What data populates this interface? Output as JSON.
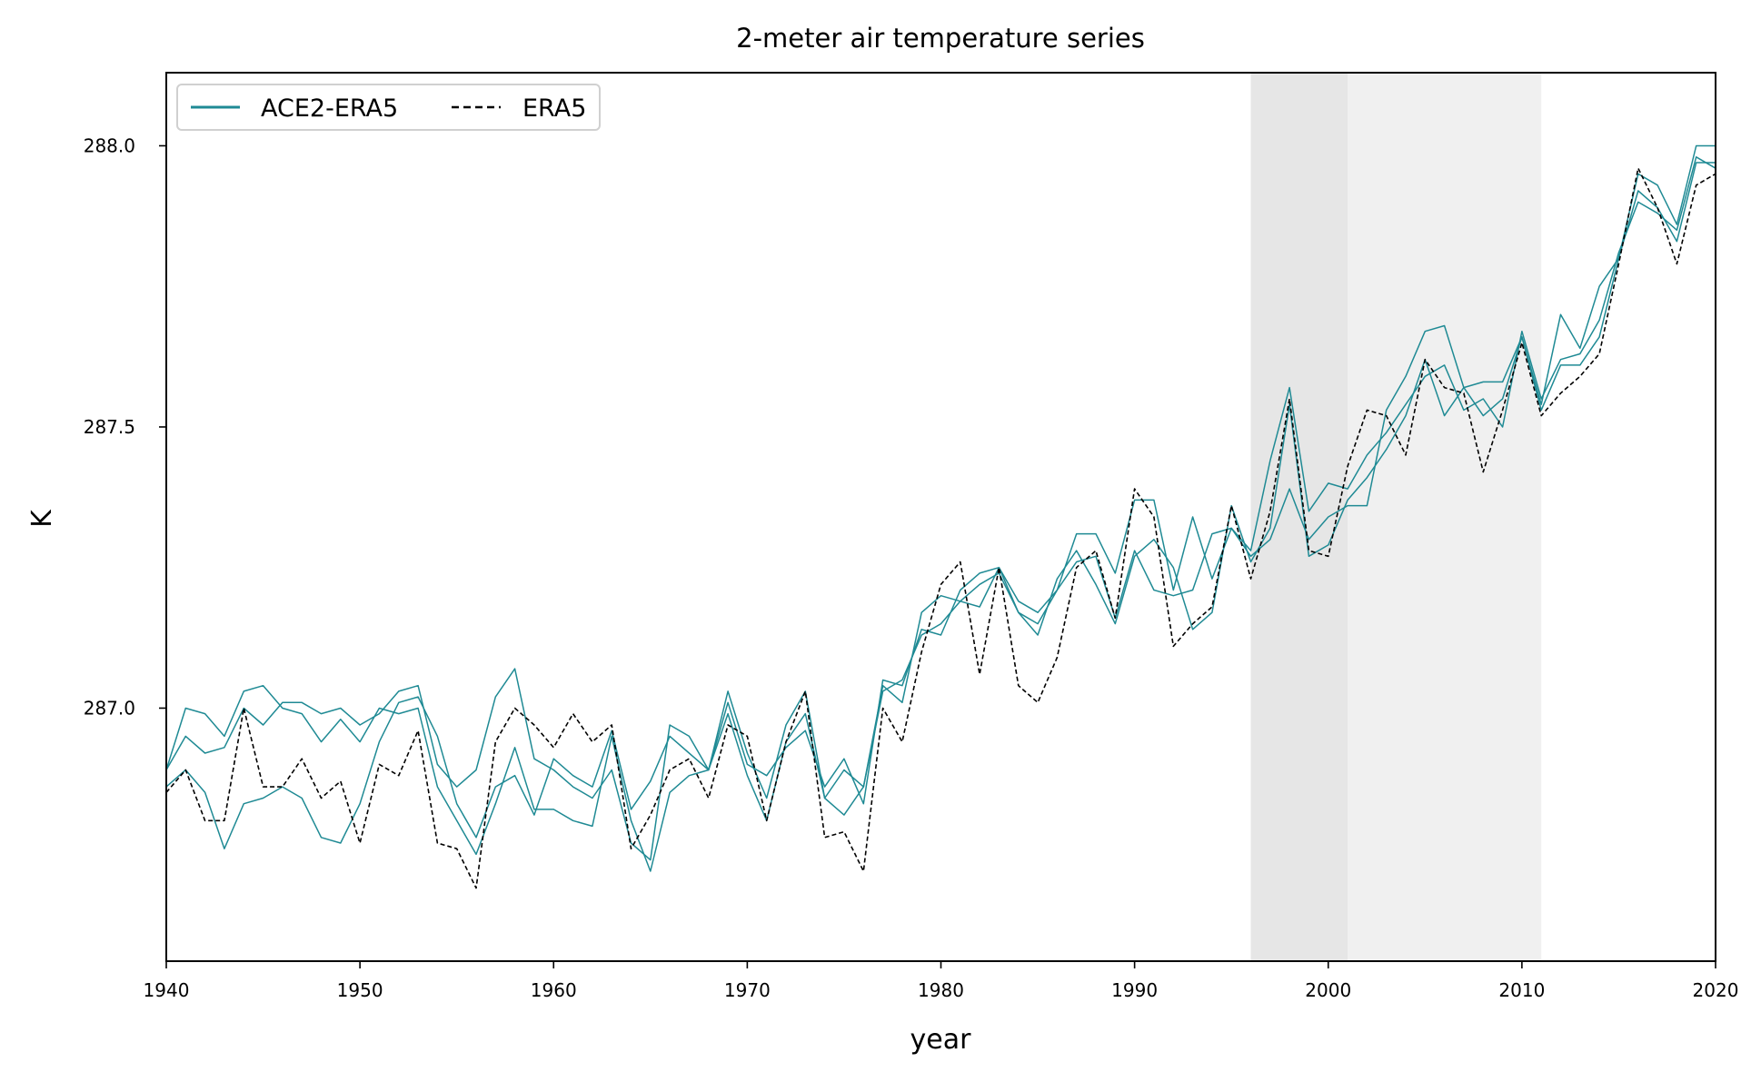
{
  "chart_data": {
    "type": "line",
    "title": "2-meter air temperature series",
    "xlabel": "year",
    "ylabel": "K",
    "xlim": [
      1940,
      2020
    ],
    "ylim": [
      286.55,
      288.13
    ],
    "x_ticks": [
      "1940",
      "1950",
      "1960",
      "1970",
      "1980",
      "1990",
      "2000",
      "2010",
      "2020"
    ],
    "y_ticks": [
      "287.0",
      "287.5",
      "288.0"
    ],
    "grid": false,
    "legend": {
      "placement": "top-left",
      "entries": [
        {
          "label": "ACE2-ERA5",
          "style": "solid",
          "color": "#1f8a94"
        },
        {
          "label": "ERA5",
          "style": "dashed",
          "color": "#000000"
        }
      ]
    },
    "shaded_regions": [
      {
        "x0": 1996,
        "x1": 2001,
        "color": "#e6e6e6"
      },
      {
        "x0": 2001,
        "x1": 2011,
        "color": "#f0f0f0"
      }
    ],
    "x": [
      1940,
      1941,
      1942,
      1943,
      1944,
      1945,
      1946,
      1947,
      1948,
      1949,
      1950,
      1951,
      1952,
      1953,
      1954,
      1955,
      1956,
      1957,
      1958,
      1959,
      1960,
      1961,
      1962,
      1963,
      1964,
      1965,
      1966,
      1967,
      1968,
      1969,
      1970,
      1971,
      1972,
      1973,
      1974,
      1975,
      1976,
      1977,
      1978,
      1979,
      1980,
      1981,
      1982,
      1983,
      1984,
      1985,
      1986,
      1987,
      1988,
      1989,
      1990,
      1991,
      1992,
      1993,
      1994,
      1995,
      1996,
      1997,
      1998,
      1999,
      2000,
      2001,
      2002,
      2003,
      2004,
      2005,
      2006,
      2007,
      2008,
      2009,
      2010,
      2011,
      2012,
      2013,
      2014,
      2015,
      2016,
      2017,
      2018,
      2019,
      2020
    ],
    "series": [
      {
        "name": "ERA5",
        "style": "dashed",
        "color": "#000000",
        "values": [
          286.85,
          286.89,
          286.8,
          286.8,
          287.0,
          286.86,
          286.86,
          286.91,
          286.84,
          286.87,
          286.76,
          286.9,
          286.88,
          286.96,
          286.76,
          286.75,
          286.68,
          286.94,
          287.0,
          286.97,
          286.93,
          286.99,
          286.94,
          286.97,
          286.75,
          286.81,
          286.89,
          286.91,
          286.84,
          286.97,
          286.95,
          286.8,
          286.94,
          287.03,
          286.77,
          286.78,
          286.71,
          287.0,
          286.94,
          287.1,
          287.22,
          287.26,
          287.06,
          287.25,
          287.04,
          287.01,
          287.09,
          287.25,
          287.28,
          287.16,
          287.39,
          287.34,
          287.11,
          287.15,
          287.18,
          287.36,
          287.23,
          287.35,
          287.55,
          287.28,
          287.27,
          287.43,
          287.53,
          287.52,
          287.45,
          287.62,
          287.57,
          287.56,
          287.42,
          287.53,
          287.65,
          287.52,
          287.56,
          287.59,
          287.63,
          287.79,
          287.96,
          287.89,
          287.79,
          287.93,
          287.95
        ]
      },
      {
        "name": "",
        "style": "solid",
        "color": "#1f8a94",
        "values": [
          286.89,
          287.0,
          286.99,
          286.95,
          287.03,
          287.04,
          287.0,
          286.99,
          286.94,
          286.98,
          286.94,
          287.0,
          286.99,
          287.0,
          286.86,
          286.8,
          286.74,
          286.83,
          286.93,
          286.82,
          286.82,
          286.8,
          286.79,
          286.95,
          286.8,
          286.71,
          286.85,
          286.88,
          286.89,
          287.01,
          286.9,
          286.88,
          286.93,
          286.96,
          286.86,
          286.91,
          286.83,
          287.05,
          287.04,
          287.14,
          287.13,
          287.21,
          287.24,
          287.25,
          287.17,
          287.15,
          287.21,
          287.31,
          287.31,
          287.24,
          287.37,
          287.37,
          287.21,
          287.34,
          287.23,
          287.32,
          287.27,
          287.3,
          287.39,
          287.3,
          287.34,
          287.36,
          287.36,
          287.53,
          287.59,
          287.67,
          287.68,
          287.57,
          287.58,
          287.58,
          287.66,
          287.54,
          287.7,
          287.64,
          287.75,
          287.8,
          287.95,
          287.93,
          287.86,
          288.0,
          288.0
        ]
      },
      {
        "name": "",
        "style": "solid",
        "color": "#1f8a94",
        "values": [
          286.89,
          286.95,
          286.92,
          286.93,
          287.0,
          286.97,
          287.01,
          287.01,
          286.99,
          287.0,
          286.97,
          286.99,
          287.03,
          287.04,
          286.9,
          286.86,
          286.89,
          287.02,
          287.07,
          286.91,
          286.89,
          286.86,
          286.84,
          286.89,
          286.76,
          286.73,
          286.97,
          286.95,
          286.89,
          287.03,
          286.92,
          286.84,
          286.97,
          287.03,
          286.84,
          286.81,
          286.86,
          287.04,
          287.01,
          287.17,
          287.2,
          287.19,
          287.18,
          287.25,
          287.19,
          287.17,
          287.21,
          287.26,
          287.27,
          287.16,
          287.28,
          287.21,
          287.2,
          287.21,
          287.31,
          287.32,
          287.28,
          287.44,
          287.57,
          287.35,
          287.4,
          287.39,
          287.45,
          287.49,
          287.54,
          287.59,
          287.61,
          287.53,
          287.55,
          287.5,
          287.67,
          287.55,
          287.62,
          287.63,
          287.69,
          287.81,
          287.9,
          287.88,
          287.85,
          287.98,
          287.96
        ]
      },
      {
        "name": "",
        "style": "solid",
        "color": "#1f8a94",
        "values": [
          286.86,
          286.89,
          286.85,
          286.75,
          286.83,
          286.84,
          286.86,
          286.84,
          286.77,
          286.76,
          286.83,
          286.94,
          287.01,
          287.02,
          286.95,
          286.83,
          286.77,
          286.86,
          286.88,
          286.81,
          286.91,
          286.88,
          286.86,
          286.96,
          286.82,
          286.87,
          286.95,
          286.92,
          286.89,
          286.99,
          286.88,
          286.8,
          286.94,
          286.99,
          286.84,
          286.89,
          286.86,
          287.03,
          287.05,
          287.13,
          287.15,
          287.19,
          287.22,
          287.24,
          287.17,
          287.13,
          287.23,
          287.28,
          287.22,
          287.15,
          287.27,
          287.3,
          287.25,
          287.14,
          287.17,
          287.36,
          287.26,
          287.32,
          287.54,
          287.27,
          287.29,
          287.37,
          287.41,
          287.46,
          287.52,
          287.62,
          287.52,
          287.57,
          287.52,
          287.55,
          287.66,
          287.53,
          287.61,
          287.61,
          287.66,
          287.8,
          287.92,
          287.89,
          287.83,
          287.97,
          287.97
        ]
      }
    ]
  }
}
